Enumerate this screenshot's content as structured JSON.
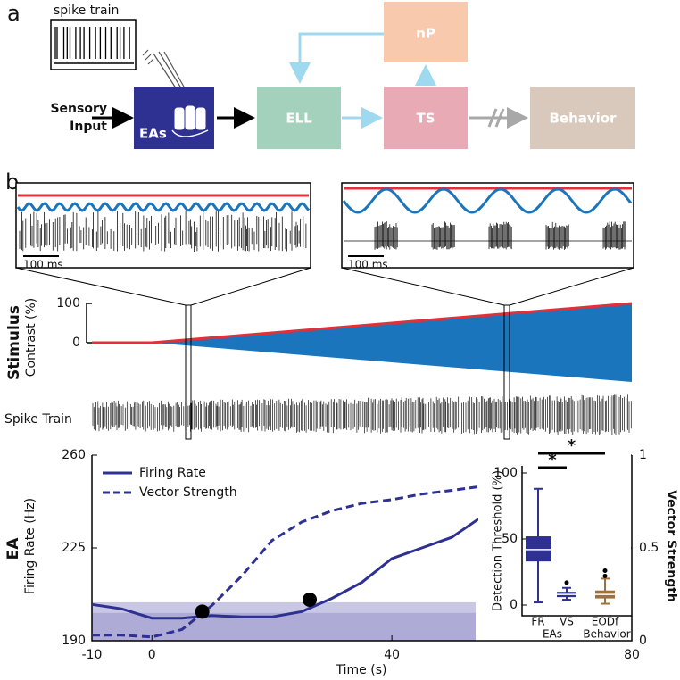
{
  "panel_labels": [
    "a",
    "b"
  ],
  "diagram": {
    "spike_train_label": "spike train",
    "input_label": [
      "Sensory",
      "Input"
    ],
    "nodes": [
      {
        "label": "EAs"
      },
      {
        "label": "ELL"
      },
      {
        "label": "TS"
      },
      {
        "label": "nP"
      },
      {
        "label": "Behavior"
      }
    ]
  },
  "scale_bar_labels": [
    "100 ms",
    "100 ms"
  ],
  "spike_train_label": "Spike Train",
  "chart_data": [
    {
      "type": "area",
      "ylabel": [
        "Stimulus",
        "Contrast (%)"
      ],
      "x": [
        -10,
        0,
        80
      ],
      "values": [
        0,
        0,
        100
      ],
      "xlim": [
        -10,
        80
      ],
      "ylim": [
        0,
        100
      ],
      "yticks": [
        0,
        100
      ],
      "color": "#e0303a",
      "fill": "#1a75bc"
    },
    {
      "type": "line",
      "xlabel": "Time (s)",
      "ylabel": [
        "EA",
        "Firing Rate (Hz)"
      ],
      "y2label": "Vector Strength",
      "x": [
        -10,
        -5,
        0,
        5,
        10,
        15,
        20,
        25,
        30,
        35,
        40,
        45,
        50,
        54.5
      ],
      "xlim": [
        -10,
        80
      ],
      "xticks": [
        -10,
        0,
        40,
        80
      ],
      "ylim": [
        190,
        260
      ],
      "yticks": [
        190,
        225,
        260
      ],
      "y2lim": [
        0,
        1
      ],
      "y2ticks": [
        0,
        0.5,
        1
      ],
      "legend": "upper left",
      "series": [
        {
          "name": "Firing Rate",
          "color": "#2e3192",
          "values": [
            203.7,
            202,
            198.5,
            198.5,
            199.5,
            199,
            199,
            201,
            206,
            212,
            221,
            225,
            229,
            236
          ]
        },
        {
          "name": "Vector Strength",
          "color": "#2e3192",
          "dashed": true,
          "axis": "y2",
          "values": [
            0.03,
            0.03,
            0.02,
            0.06,
            0.19,
            0.35,
            0.54,
            0.64,
            0.7,
            0.74,
            0.76,
            0.79,
            0.81,
            0.83
          ]
        }
      ],
      "markers": {
        "x": [
          8.4,
          26.3
        ],
        "values": [
          201,
          205.5
        ],
        "color": "#000000"
      },
      "bands": [
        {
          "range": [
            190,
            204.5
          ],
          "color": "#c9c8e4"
        },
        {
          "range": [
            190,
            200.5
          ],
          "color": "#aeacd6"
        }
      ]
    },
    {
      "type": "box",
      "ylabel": "Detection Threshold (%)",
      "ylim": [
        0,
        100
      ],
      "yticks": [
        0,
        50,
        100
      ],
      "categories": [
        "FR",
        "VS",
        "EODf"
      ],
      "groups": [
        "EAs",
        "Behavior"
      ],
      "colors": [
        "#2e3192",
        "#2e3192",
        "#a0703c"
      ],
      "boxes": [
        {
          "low": 2,
          "q1": 33,
          "median": 42,
          "q3": 52,
          "high": 88,
          "outliers": []
        },
        {
          "low": 4,
          "q1": 6,
          "median": 8,
          "q3": 10,
          "high": 13,
          "outliers": [
            17
          ]
        },
        {
          "low": 1,
          "q1": 5,
          "median": 8,
          "q3": 11,
          "high": 20,
          "outliers": [
            22,
            26
          ]
        }
      ],
      "significance": [
        {
          "label": "*",
          "pair": [
            0,
            1
          ]
        },
        {
          "label": "*",
          "pair": [
            0,
            2
          ]
        }
      ]
    }
  ]
}
